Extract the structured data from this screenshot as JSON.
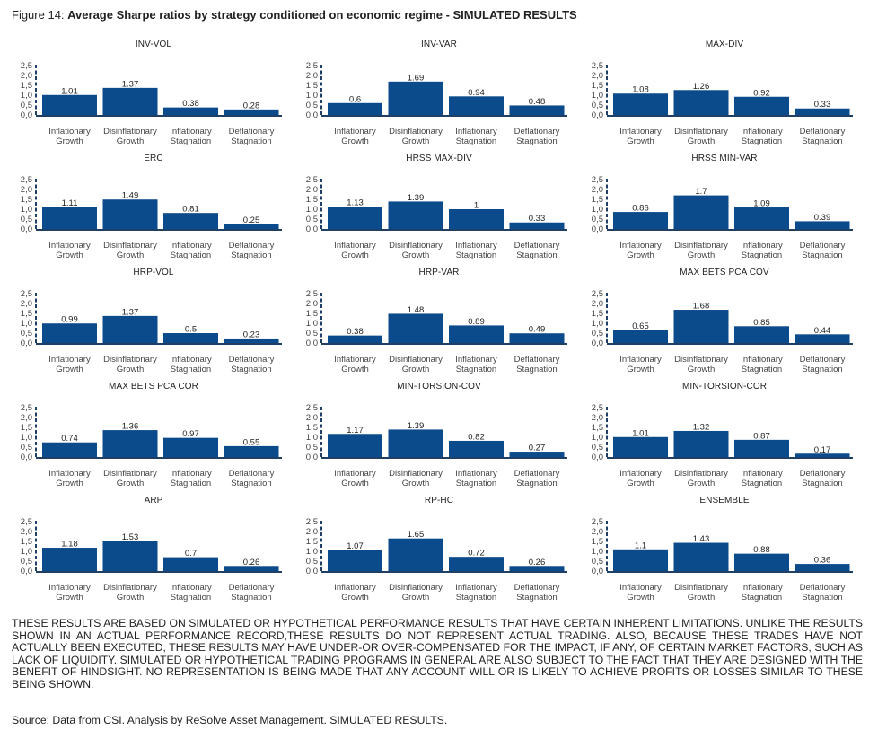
{
  "figure": {
    "label": "Figure 14: ",
    "title": "Average Sharpe ratios by strategy conditioned on economic regime - SIMULATED RESULTS"
  },
  "colors": {
    "bar": "#0b4a8b",
    "axis": "#1f3f66",
    "text": "#222222"
  },
  "chart_data": [
    {
      "type": "bar",
      "title": "INV-VOL",
      "categories": [
        "Inflationary Growth",
        "Disinflationary Growth",
        "Inflationary Stagnation",
        "Deflationary Stagnation"
      ],
      "values": [
        1.01,
        1.37,
        0.38,
        0.28
      ],
      "value_labels": [
        "1.01",
        "1.37",
        "0.38",
        "0.28"
      ],
      "ylim": [
        0,
        2.5
      ],
      "yticks": [
        "0,0",
        "0,5",
        "1,0",
        "1,5",
        "2,0",
        "2,5"
      ],
      "grid": false
    },
    {
      "type": "bar",
      "title": "INV-VAR",
      "categories": [
        "Inflationary Growth",
        "Disinflationary Growth",
        "Inflationary Stagnation",
        "Deflationary Stagnation"
      ],
      "values": [
        0.6,
        1.69,
        0.94,
        0.48
      ],
      "value_labels": [
        "0.6",
        "1.69",
        "0.94",
        "0.48"
      ],
      "ylim": [
        0,
        2.5
      ],
      "yticks": [
        "0,0",
        "0,5",
        "1,0",
        "1,5",
        "2,0",
        "2,5"
      ],
      "grid": false
    },
    {
      "type": "bar",
      "title": "MAX-DIV",
      "categories": [
        "Inflationary Growth",
        "Disinflationary Growth",
        "Inflationary Stagnation",
        "Deflationary Stagnation"
      ],
      "values": [
        1.08,
        1.26,
        0.92,
        0.33
      ],
      "value_labels": [
        "1.08",
        "1.26",
        "0.92",
        "0.33"
      ],
      "ylim": [
        0,
        2.5
      ],
      "yticks": [
        "0,0",
        "0,5",
        "1,0",
        "1,5",
        "2,0",
        "2,5"
      ],
      "grid": false
    },
    {
      "type": "bar",
      "title": "ERC",
      "categories": [
        "Inflationary Growth",
        "Disinflationary Growth",
        "Inflationary Stagnation",
        "Deflationary Stagnation"
      ],
      "values": [
        1.11,
        1.49,
        0.81,
        0.25
      ],
      "value_labels": [
        "1.11",
        "1.49",
        "0.81",
        "0.25"
      ],
      "ylim": [
        0,
        2.5
      ],
      "yticks": [
        "0,0",
        "0,5",
        "1,0",
        "1,5",
        "2,0",
        "2,5"
      ],
      "grid": false
    },
    {
      "type": "bar",
      "title": "HRSS MAX-DIV",
      "categories": [
        "Inflationary Growth",
        "Disinflationary Growth",
        "Inflationary Stagnation",
        "Deflationary Stagnation"
      ],
      "values": [
        1.13,
        1.39,
        1.0,
        0.33
      ],
      "value_labels": [
        "1.13",
        "1.39",
        "1",
        "0.33"
      ],
      "ylim": [
        0,
        2.5
      ],
      "yticks": [
        "0,0",
        "0,5",
        "1,0",
        "1,5",
        "2,0",
        "2,5"
      ],
      "grid": false
    },
    {
      "type": "bar",
      "title": "HRSS MIN-VAR",
      "categories": [
        "Inflationary Growth",
        "Disinflationary Growth",
        "Inflationary Stagnation",
        "Deflationary Stagnation"
      ],
      "values": [
        0.86,
        1.7,
        1.09,
        0.39
      ],
      "value_labels": [
        "0.86",
        "1.7",
        "1.09",
        "0.39"
      ],
      "ylim": [
        0,
        2.5
      ],
      "yticks": [
        "0,0",
        "0,5",
        "1,0",
        "1,5",
        "2,0",
        "2,5"
      ],
      "grid": false
    },
    {
      "type": "bar",
      "title": "HRP-VOL",
      "categories": [
        "Inflationary Growth",
        "Disinflationary Growth",
        "Inflationary Stagnation",
        "Deflationary Stagnation"
      ],
      "values": [
        0.99,
        1.37,
        0.5,
        0.23
      ],
      "value_labels": [
        "0.99",
        "1.37",
        "0.5",
        "0.23"
      ],
      "ylim": [
        0,
        2.5
      ],
      "yticks": [
        "0,0",
        "0,5",
        "1,0",
        "1,5",
        "2,0",
        "2,5"
      ],
      "grid": false
    },
    {
      "type": "bar",
      "title": "HRP-VAR",
      "categories": [
        "Inflationary Growth",
        "Disinflationary Growth",
        "Inflationary Stagnation",
        "Deflationary Stagnation"
      ],
      "values": [
        0.38,
        1.48,
        0.89,
        0.49
      ],
      "value_labels": [
        "0.38",
        "1.48",
        "0.89",
        "0.49"
      ],
      "ylim": [
        0,
        2.5
      ],
      "yticks": [
        "0,0",
        "0,5",
        "1,0",
        "1,5",
        "2,0",
        "2,5"
      ],
      "grid": false
    },
    {
      "type": "bar",
      "title": "MAX BETS PCA COV",
      "categories": [
        "Inflationary Growth",
        "Disinflationary Growth",
        "Inflationary Stagnation",
        "Deflationary Stagnation"
      ],
      "values": [
        0.65,
        1.68,
        0.85,
        0.44
      ],
      "value_labels": [
        "0.65",
        "1.68",
        "0.85",
        "0.44"
      ],
      "ylim": [
        0,
        2.5
      ],
      "yticks": [
        "0,0",
        "0,5",
        "1,0",
        "1,5",
        "2,0",
        "2,5"
      ],
      "grid": false
    },
    {
      "type": "bar",
      "title": "MAX BETS PCA COR",
      "categories": [
        "Inflationary Growth",
        "Disinflationary Growth",
        "Inflationary Stagnation",
        "Deflationary Stagnation"
      ],
      "values": [
        0.74,
        1.36,
        0.97,
        0.55
      ],
      "value_labels": [
        "0.74",
        "1.36",
        "0.97",
        "0.55"
      ],
      "ylim": [
        0,
        2.5
      ],
      "yticks": [
        "0,0",
        "0,5",
        "1,0",
        "1,5",
        "2,0",
        "2,5"
      ],
      "grid": false
    },
    {
      "type": "bar",
      "title": "MIN-TORSION-COV",
      "categories": [
        "Inflationary Growth",
        "Disinflationary Growth",
        "Inflationary Stagnation",
        "Deflationary Stagnation"
      ],
      "values": [
        1.17,
        1.39,
        0.82,
        0.27
      ],
      "value_labels": [
        "1.17",
        "1.39",
        "0.82",
        "0.27"
      ],
      "ylim": [
        0,
        2.5
      ],
      "yticks": [
        "0,0",
        "0,5",
        "1,0",
        "1,5",
        "2,0",
        "2,5"
      ],
      "grid": false
    },
    {
      "type": "bar",
      "title": "MIN-TORSION-COR",
      "categories": [
        "Inflationary Growth",
        "Disinflationary Growth",
        "Inflationary Stagnation",
        "Deflationary Stagnation"
      ],
      "values": [
        1.01,
        1.32,
        0.87,
        0.17
      ],
      "value_labels": [
        "1.01",
        "1.32",
        "0.87",
        "0.17"
      ],
      "ylim": [
        0,
        2.5
      ],
      "yticks": [
        "0,0",
        "0,5",
        "1,0",
        "1,5",
        "2,0",
        "2,5"
      ],
      "grid": false
    },
    {
      "type": "bar",
      "title": "ARP",
      "categories": [
        "Inflationary Growth",
        "Disinflationary Growth",
        "Inflationary Stagnation",
        "Deflationary Stagnation"
      ],
      "values": [
        1.18,
        1.53,
        0.7,
        0.26
      ],
      "value_labels": [
        "1.18",
        "1.53",
        "0.7",
        "0.26"
      ],
      "ylim": [
        0,
        2.5
      ],
      "yticks": [
        "0,0",
        "0,5",
        "1,0",
        "1,5",
        "2,0",
        "2,5"
      ],
      "grid": false
    },
    {
      "type": "bar",
      "title": "RP-HC",
      "categories": [
        "Inflationary Growth",
        "Disinflationary Growth",
        "Inflationary Stagnation",
        "Deflationary Stagnation"
      ],
      "values": [
        1.07,
        1.65,
        0.72,
        0.26
      ],
      "value_labels": [
        "1.07",
        "1.65",
        "0.72",
        "0.26"
      ],
      "ylim": [
        0,
        2.5
      ],
      "yticks": [
        "0,0",
        "0,5",
        "1,0",
        "1,5",
        "2,0",
        "2,5"
      ],
      "grid": false
    },
    {
      "type": "bar",
      "title": "ENSEMBLE",
      "categories": [
        "Inflationary Growth",
        "Disinflationary Growth",
        "Inflationary Stagnation",
        "Deflationary Stagnation"
      ],
      "values": [
        1.1,
        1.43,
        0.88,
        0.36
      ],
      "value_labels": [
        "1.1",
        "1.43",
        "0.88",
        "0.36"
      ],
      "ylim": [
        0,
        2.5
      ],
      "yticks": [
        "0,0",
        "0,5",
        "1,0",
        "1,5",
        "2,0",
        "2,5"
      ],
      "grid": false
    }
  ],
  "disclaimer": "THESE RESULTS ARE BASED ON SIMULATED OR HYPOTHETICAL PERFORMANCE RESULTS THAT HAVE CERTAIN INHERENT LIMITATIONS. UNLIKE THE RESULTS SHOWN IN AN ACTUAL PERFORMANCE RECORD,THESE RESULTS DO NOT REPRESENT ACTUAL TRADING. ALSO, BECAUSE THESE TRADES HAVE NOT ACTUALLY BEEN EXECUTED, THESE RESULTS MAY HAVE UNDER-OR OVER-COMPENSATED FOR THE IMPACT, IF ANY, OF CERTAIN MARKET FACTORS, SUCH AS LACK OF LIQUIDITY. SIMULATED OR HYPOTHETICAL TRADING PROGRAMS IN GENERAL ARE ALSO SUBJECT TO THE FACT THAT THEY ARE DESIGNED WITH THE BENEFIT OF HINDSIGHT. NO REPRESENTATION IS BEING MADE THAT ANY ACCOUNT WILL OR IS LIKELY TO ACHIEVE PROFITS OR LOSSES SIMILAR TO THESE BEING SHOWN.",
  "source": "Source: Data from CSI. Analysis by ReSolve Asset Management. SIMULATED RESULTS."
}
